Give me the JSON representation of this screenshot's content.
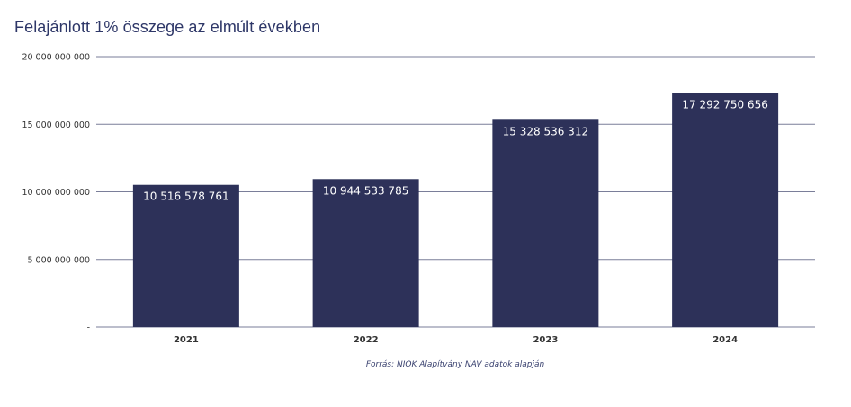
{
  "chart_data": {
    "type": "bar",
    "title": "Felajánlott 1% összege az elmúlt években",
    "categories": [
      "2021",
      "2022",
      "2023",
      "2024"
    ],
    "values": [
      10516578761,
      10944533785,
      15328536312,
      17292750656
    ],
    "value_labels": [
      "10 516 578 761",
      "10 944 533 785",
      "15 328 536 312",
      "17 292 750 656"
    ],
    "ylim": [
      0,
      20000000000
    ],
    "yticks": [
      0,
      5000000000,
      10000000000,
      15000000000,
      20000000000
    ],
    "ytick_labels": [
      "-",
      "5 000 000 000",
      "10 000 000 000",
      "15 000 000 000",
      "20 000 000 000"
    ],
    "xlabel": "",
    "ylabel": "",
    "grid": true,
    "legend": "none",
    "bar_color": "#2d3159",
    "grid_color": "#7a7e99"
  },
  "source_note": "Forrás: NIOK Alapítvány NAV adatok alapján"
}
